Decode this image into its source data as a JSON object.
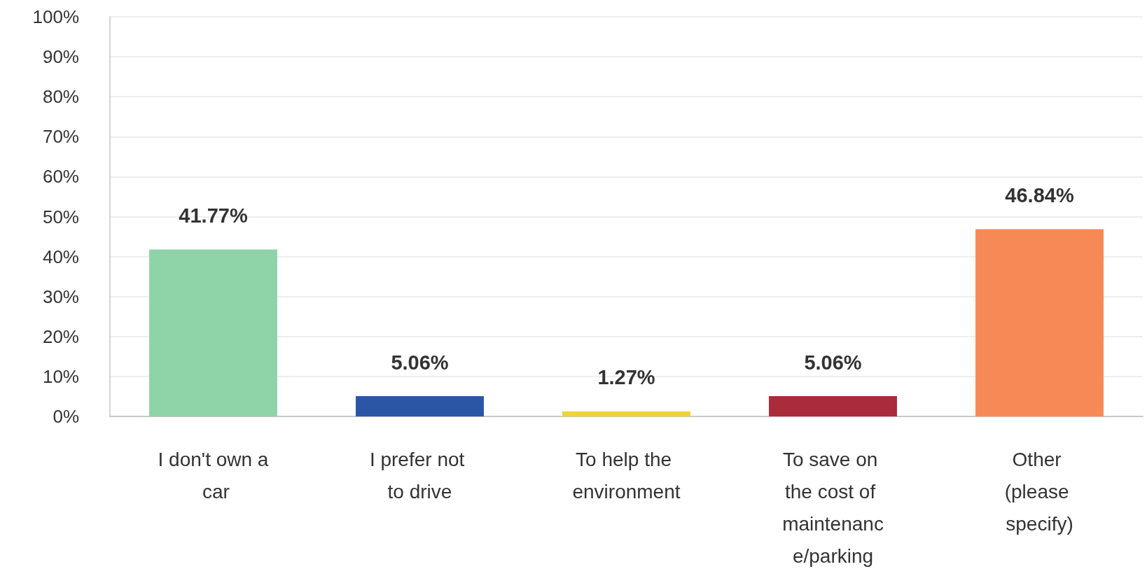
{
  "chart_data": {
    "type": "bar",
    "categories": [
      "I don't own a car",
      "I prefer not to drive",
      "To help the environment",
      "To save on the cost of maintenance/parking",
      "Other (please specify)"
    ],
    "values": [
      41.77,
      5.06,
      1.27,
      5.06,
      46.84
    ],
    "colors": [
      "#8fd3a8",
      "#2b56a6",
      "#f2d23a",
      "#a92b3c",
      "#f68a56"
    ],
    "value_labels": [
      "41.77%",
      "5.06%",
      "1.27%",
      "5.06%",
      "46.84%"
    ],
    "ylim": [
      0,
      100
    ],
    "yticks": [
      {
        "value": 0,
        "label": "0%"
      },
      {
        "value": 10,
        "label": "10%"
      },
      {
        "value": 20,
        "label": "20%"
      },
      {
        "value": 30,
        "label": "30%"
      },
      {
        "value": 40,
        "label": "40%"
      },
      {
        "value": 50,
        "label": "50%"
      },
      {
        "value": 60,
        "label": "60%"
      },
      {
        "value": 70,
        "label": "70%"
      },
      {
        "value": 80,
        "label": "80%"
      },
      {
        "value": 90,
        "label": "90%"
      },
      {
        "value": 100,
        "label": "100%"
      }
    ],
    "grid": "y"
  }
}
